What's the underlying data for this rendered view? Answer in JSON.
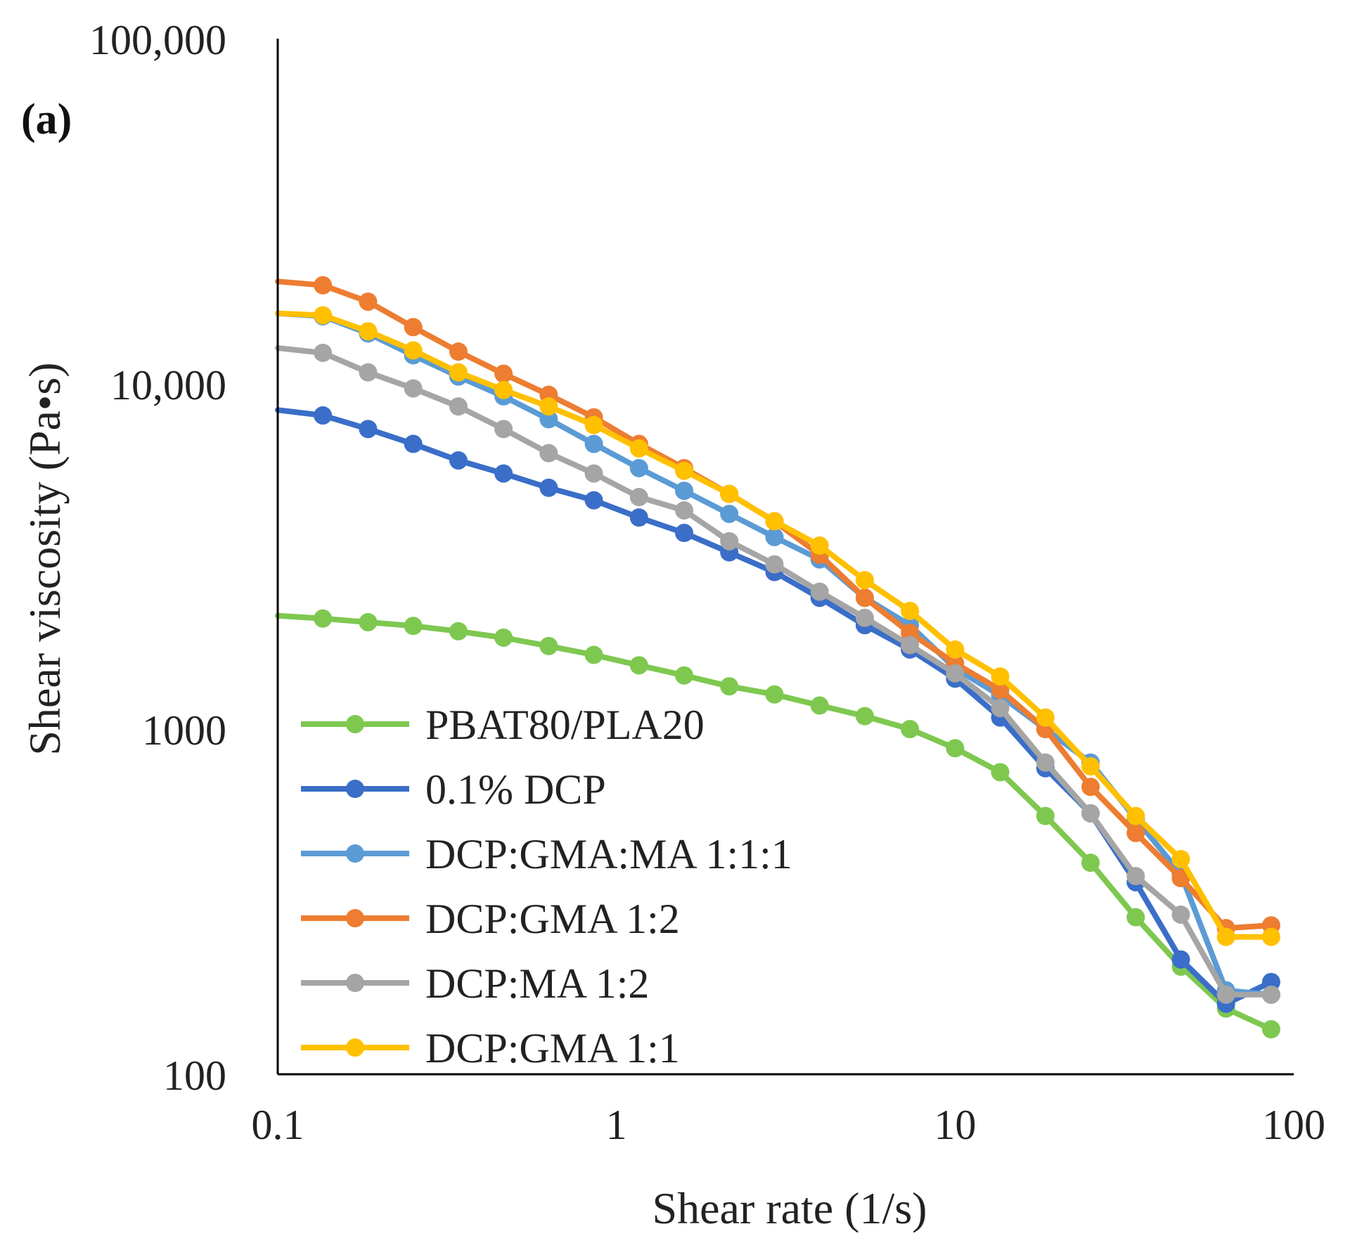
{
  "chart_data": {
    "type": "line",
    "panel_label": "(a)",
    "xlabel": "Shear rate (1/s)",
    "ylabel": "Shear viscosity (Pa•s)",
    "xscale": "log",
    "yscale": "log",
    "xlim": [
      0.1,
      100
    ],
    "ylim": [
      100,
      100000
    ],
    "x_ticks": [
      {
        "value": 0.1,
        "label": "0.1"
      },
      {
        "value": 1,
        "label": "1"
      },
      {
        "value": 10,
        "label": "10"
      },
      {
        "value": 100,
        "label": "100"
      }
    ],
    "y_ticks": [
      {
        "value": 100,
        "label": "100"
      },
      {
        "value": 1000,
        "label": "1000"
      },
      {
        "value": 10000,
        "label": "10,000"
      },
      {
        "value": 100000,
        "label": "100,000"
      }
    ],
    "grid": false,
    "legend_position": "bottom-left inside plot",
    "x": [
      0.1,
      0.1359,
      0.1848,
      0.2512,
      0.3415,
      0.4642,
      0.631,
      0.8577,
      1.166,
      1.585,
      2.154,
      2.929,
      3.981,
      5.412,
      7.356,
      10.0,
      13.59,
      18.48,
      25.12,
      34.15,
      46.42,
      63.1,
      85.77
    ],
    "series": [
      {
        "name": "PBAT80/PLA20",
        "color": "#7ec850",
        "values": [
          2130,
          2090,
          2040,
          1990,
          1920,
          1840,
          1740,
          1640,
          1530,
          1430,
          1330,
          1260,
          1170,
          1090,
          1000,
          880,
          750,
          560,
          410,
          285,
          205,
          155,
          135
        ]
      },
      {
        "name": "0.1% DCP",
        "color": "#3a6ec8",
        "values": [
          8400,
          8100,
          7400,
          6700,
          6000,
          5500,
          5000,
          4600,
          4100,
          3700,
          3250,
          2850,
          2400,
          2000,
          1700,
          1400,
          1080,
          770,
          570,
          360,
          215,
          160,
          185
        ]
      },
      {
        "name": "DCP:GMA:MA 1:1:1",
        "color": "#5b9bd5",
        "values": [
          16000,
          15700,
          14000,
          12100,
          10500,
          9200,
          7900,
          6700,
          5700,
          4900,
          4200,
          3600,
          3100,
          2400,
          2000,
          1500,
          1250,
          1000,
          800,
          550,
          380,
          175,
          170
        ]
      },
      {
        "name": "DCP:GMA 1:2",
        "color": "#ed7d31",
        "values": [
          19800,
          19300,
          17300,
          14600,
          12400,
          10700,
          9300,
          8000,
          6700,
          5700,
          4800,
          4000,
          3200,
          2400,
          1900,
          1550,
          1300,
          1000,
          680,
          500,
          370,
          265,
          270
        ]
      },
      {
        "name": "DCP:MA 1:2",
        "color": "#a5a5a5",
        "values": [
          12700,
          12300,
          10800,
          9700,
          8600,
          7400,
          6300,
          5500,
          4700,
          4300,
          3500,
          3000,
          2500,
          2100,
          1750,
          1450,
          1150,
          800,
          570,
          375,
          290,
          170,
          170
        ]
      },
      {
        "name": "DCP:GMA 1:1",
        "color": "#ffc000",
        "values": [
          16000,
          15800,
          14200,
          12500,
          10800,
          9600,
          8600,
          7600,
          6500,
          5600,
          4800,
          4000,
          3400,
          2700,
          2200,
          1700,
          1420,
          1080,
          780,
          560,
          420,
          250,
          250
        ]
      }
    ]
  }
}
